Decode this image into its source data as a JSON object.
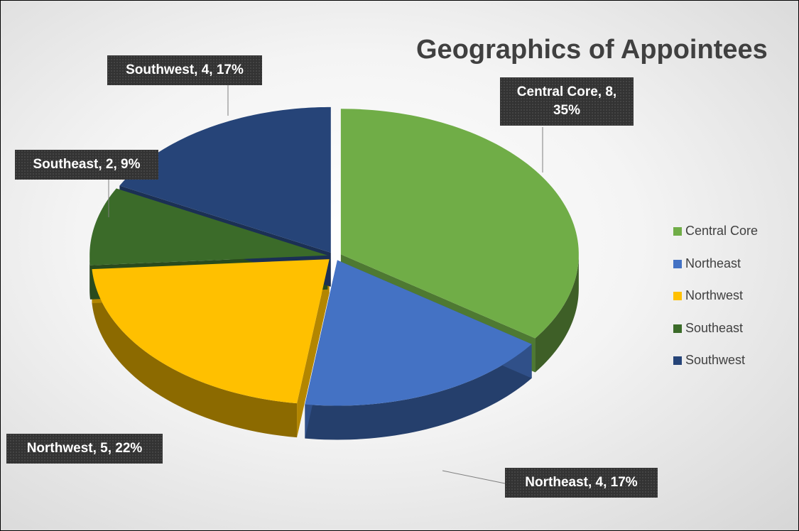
{
  "chart_data": {
    "type": "pie",
    "title": "Geographics of Appointees",
    "categories": [
      "Central Core",
      "Northeast",
      "Northwest",
      "Southeast",
      "Southwest"
    ],
    "values": [
      8,
      4,
      5,
      2,
      4
    ],
    "value_labels": [
      "Central Core, 8, 35%",
      "Northeast, 4, 17%",
      "Northwest, 5, 22%",
      "Southeast, 2, 9%",
      "Southwest, 4, 17%"
    ],
    "colors": [
      "#70ad47",
      "#4472c4",
      "#ffc000",
      "#3b6b29",
      "#264478"
    ],
    "legend": "right"
  }
}
